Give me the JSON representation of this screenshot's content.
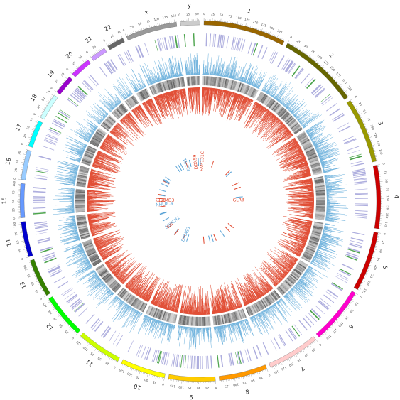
{
  "chromosomes": [
    {
      "label": "1",
      "size": 249,
      "color": "#996600"
    },
    {
      "label": "2",
      "size": 243,
      "color": "#666600"
    },
    {
      "label": "3",
      "size": 198,
      "color": "#999900"
    },
    {
      "label": "4",
      "size": 191,
      "color": "#cc0000"
    },
    {
      "label": "5",
      "size": 181,
      "color": "#cc0000"
    },
    {
      "label": "6",
      "size": 171,
      "color": "#ff00cc"
    },
    {
      "label": "7",
      "size": 159,
      "color": "#ffcccc"
    },
    {
      "label": "8",
      "size": 146,
      "color": "#ff9900"
    },
    {
      "label": "9",
      "size": 141,
      "color": "#ffcc00"
    },
    {
      "label": "10",
      "size": 136,
      "color": "#ffff00"
    },
    {
      "label": "11",
      "size": 135,
      "color": "#ccff00"
    },
    {
      "label": "12",
      "size": 134,
      "color": "#00ff00"
    },
    {
      "label": "13",
      "size": 115,
      "color": "#358000"
    },
    {
      "label": "14",
      "size": 107,
      "color": "#0000cc"
    },
    {
      "label": "15",
      "size": 103,
      "color": "#6699ff"
    },
    {
      "label": "16",
      "size": 90,
      "color": "#99ccff"
    },
    {
      "label": "17",
      "size": 81,
      "color": "#00ffff"
    },
    {
      "label": "18",
      "size": 78,
      "color": "#ccffff"
    },
    {
      "label": "19",
      "size": 59,
      "color": "#9900cc"
    },
    {
      "label": "20",
      "size": 63,
      "color": "#cc33ff"
    },
    {
      "label": "21",
      "size": 48,
      "color": "#cc99ff"
    },
    {
      "label": "22",
      "size": 51,
      "color": "#666666"
    },
    {
      "label": "x",
      "size": 155,
      "color": "#999999"
    },
    {
      "label": "y",
      "size": 59,
      "color": "#cccccc"
    }
  ],
  "tick_step": 25,
  "genes": [
    {
      "name": "FAM131C",
      "color": "#e0452b",
      "chrom": "1",
      "pos": 16
    },
    {
      "name": "DDX59",
      "color": "#e0452b",
      "chrom": "1",
      "pos": 200
    },
    {
      "name": "ELFN1",
      "color": "#5aa3d6",
      "chrom": "7",
      "pos": 2
    },
    {
      "name": "GLRB",
      "color": "#e0452b",
      "chrom": "4",
      "pos": 158
    },
    {
      "name": "DIRAS3",
      "color": "#5aa3d6",
      "chrom": "1",
      "pos": 68
    },
    {
      "name": "SOHLH1",
      "color": "#5aa3d6",
      "chrom": "9",
      "pos": 138
    },
    {
      "name": "NHLRC4",
      "color": "#5aa3d6",
      "chrom": "16",
      "pos": 1
    },
    {
      "name": "GRAMD3",
      "color": "#e0452b",
      "chrom": "5",
      "pos": 126
    }
  ],
  "colors": {
    "hist_blue": "#6ab0dc",
    "hist_red": "#e0452b",
    "heat_gray": "#888888",
    "band_purple": "#8c8cd0",
    "band_green": "#3a9a3a",
    "link_red": "#e0452b",
    "link_blue": "#5aa3d6"
  }
}
